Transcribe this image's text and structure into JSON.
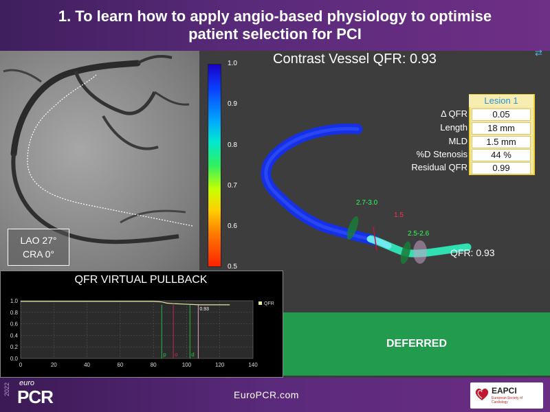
{
  "slide": {
    "title": "1. To learn how to apply angio-based physiology to optimise patient selection for PCI"
  },
  "angio": {
    "view_label_1": "LAO 27°",
    "view_label_2": "CRA 0°"
  },
  "model": {
    "title": "Contrast Vessel QFR: 0.93",
    "colorbar_ticks": [
      "1.0",
      "0.9",
      "0.8",
      "0.7",
      "0.6",
      "0.5"
    ],
    "labels": {
      "proximal": "2.7-3.0",
      "mld": "1.5",
      "distal": "2.5-2.6"
    },
    "final_qfr": "QFR: 0.93"
  },
  "lesion": {
    "header": "Lesion 1",
    "rows": [
      {
        "label": "Δ QFR",
        "value": "0.05"
      },
      {
        "label": "Length",
        "value": "18 mm"
      },
      {
        "label": "MLD",
        "value": "1.5 mm"
      },
      {
        "label": "%D Stenosis",
        "value": "44 %"
      },
      {
        "label": "Residual QFR",
        "value": "0.99"
      }
    ]
  },
  "pullback": {
    "title": "QFR VIRTUAL PULLBACK",
    "legend": "QFR",
    "annotation": "0.93",
    "markers": [
      "p",
      "o",
      "d"
    ]
  },
  "chart_data": {
    "type": "line",
    "title": "QFR VIRTUAL PULLBACK",
    "xlabel": "",
    "ylabel": "",
    "xlim": [
      0,
      140
    ],
    "ylim": [
      0,
      1.0
    ],
    "x_ticks": [
      "0",
      "20",
      "40",
      "60",
      "80",
      "100",
      "120",
      "140"
    ],
    "y_ticks": [
      "0.0",
      "0.2",
      "0.4",
      "0.6",
      "0.8",
      "1.0"
    ],
    "grid": true,
    "legend_position": "top-right",
    "series": [
      {
        "name": "QFR",
        "color": "#e8e8a0",
        "x": [
          0,
          20,
          40,
          60,
          80,
          85,
          88,
          92,
          100,
          108,
          126
        ],
        "y": [
          0.99,
          0.99,
          0.99,
          0.99,
          0.99,
          0.98,
          0.96,
          0.95,
          0.94,
          0.93,
          0.93
        ]
      }
    ],
    "vertical_markers": [
      {
        "label": "p",
        "x": 85,
        "color": "#2cc84a"
      },
      {
        "label": "o",
        "x": 92,
        "color": "#e0205a"
      },
      {
        "label": "d",
        "x": 102,
        "color": "#2cc84a"
      },
      {
        "label": "",
        "x": 107,
        "color": "#f0b8d8"
      }
    ]
  },
  "decision": {
    "label": "DEFERRED"
  },
  "footer": {
    "url": "EuroPCR.com",
    "year": "2022",
    "logo_euro": "euro",
    "logo_pcr": "PCR",
    "eapci": "EAPCI",
    "eapci_sub": "European Society of Cardiology"
  },
  "colors": {
    "title_bg": "#5a2a7a",
    "deferred_bg": "#239b4f",
    "lesion_border": "#f0d030",
    "vessel_blue": "#1030f0",
    "vessel_green": "#30e8a0"
  }
}
